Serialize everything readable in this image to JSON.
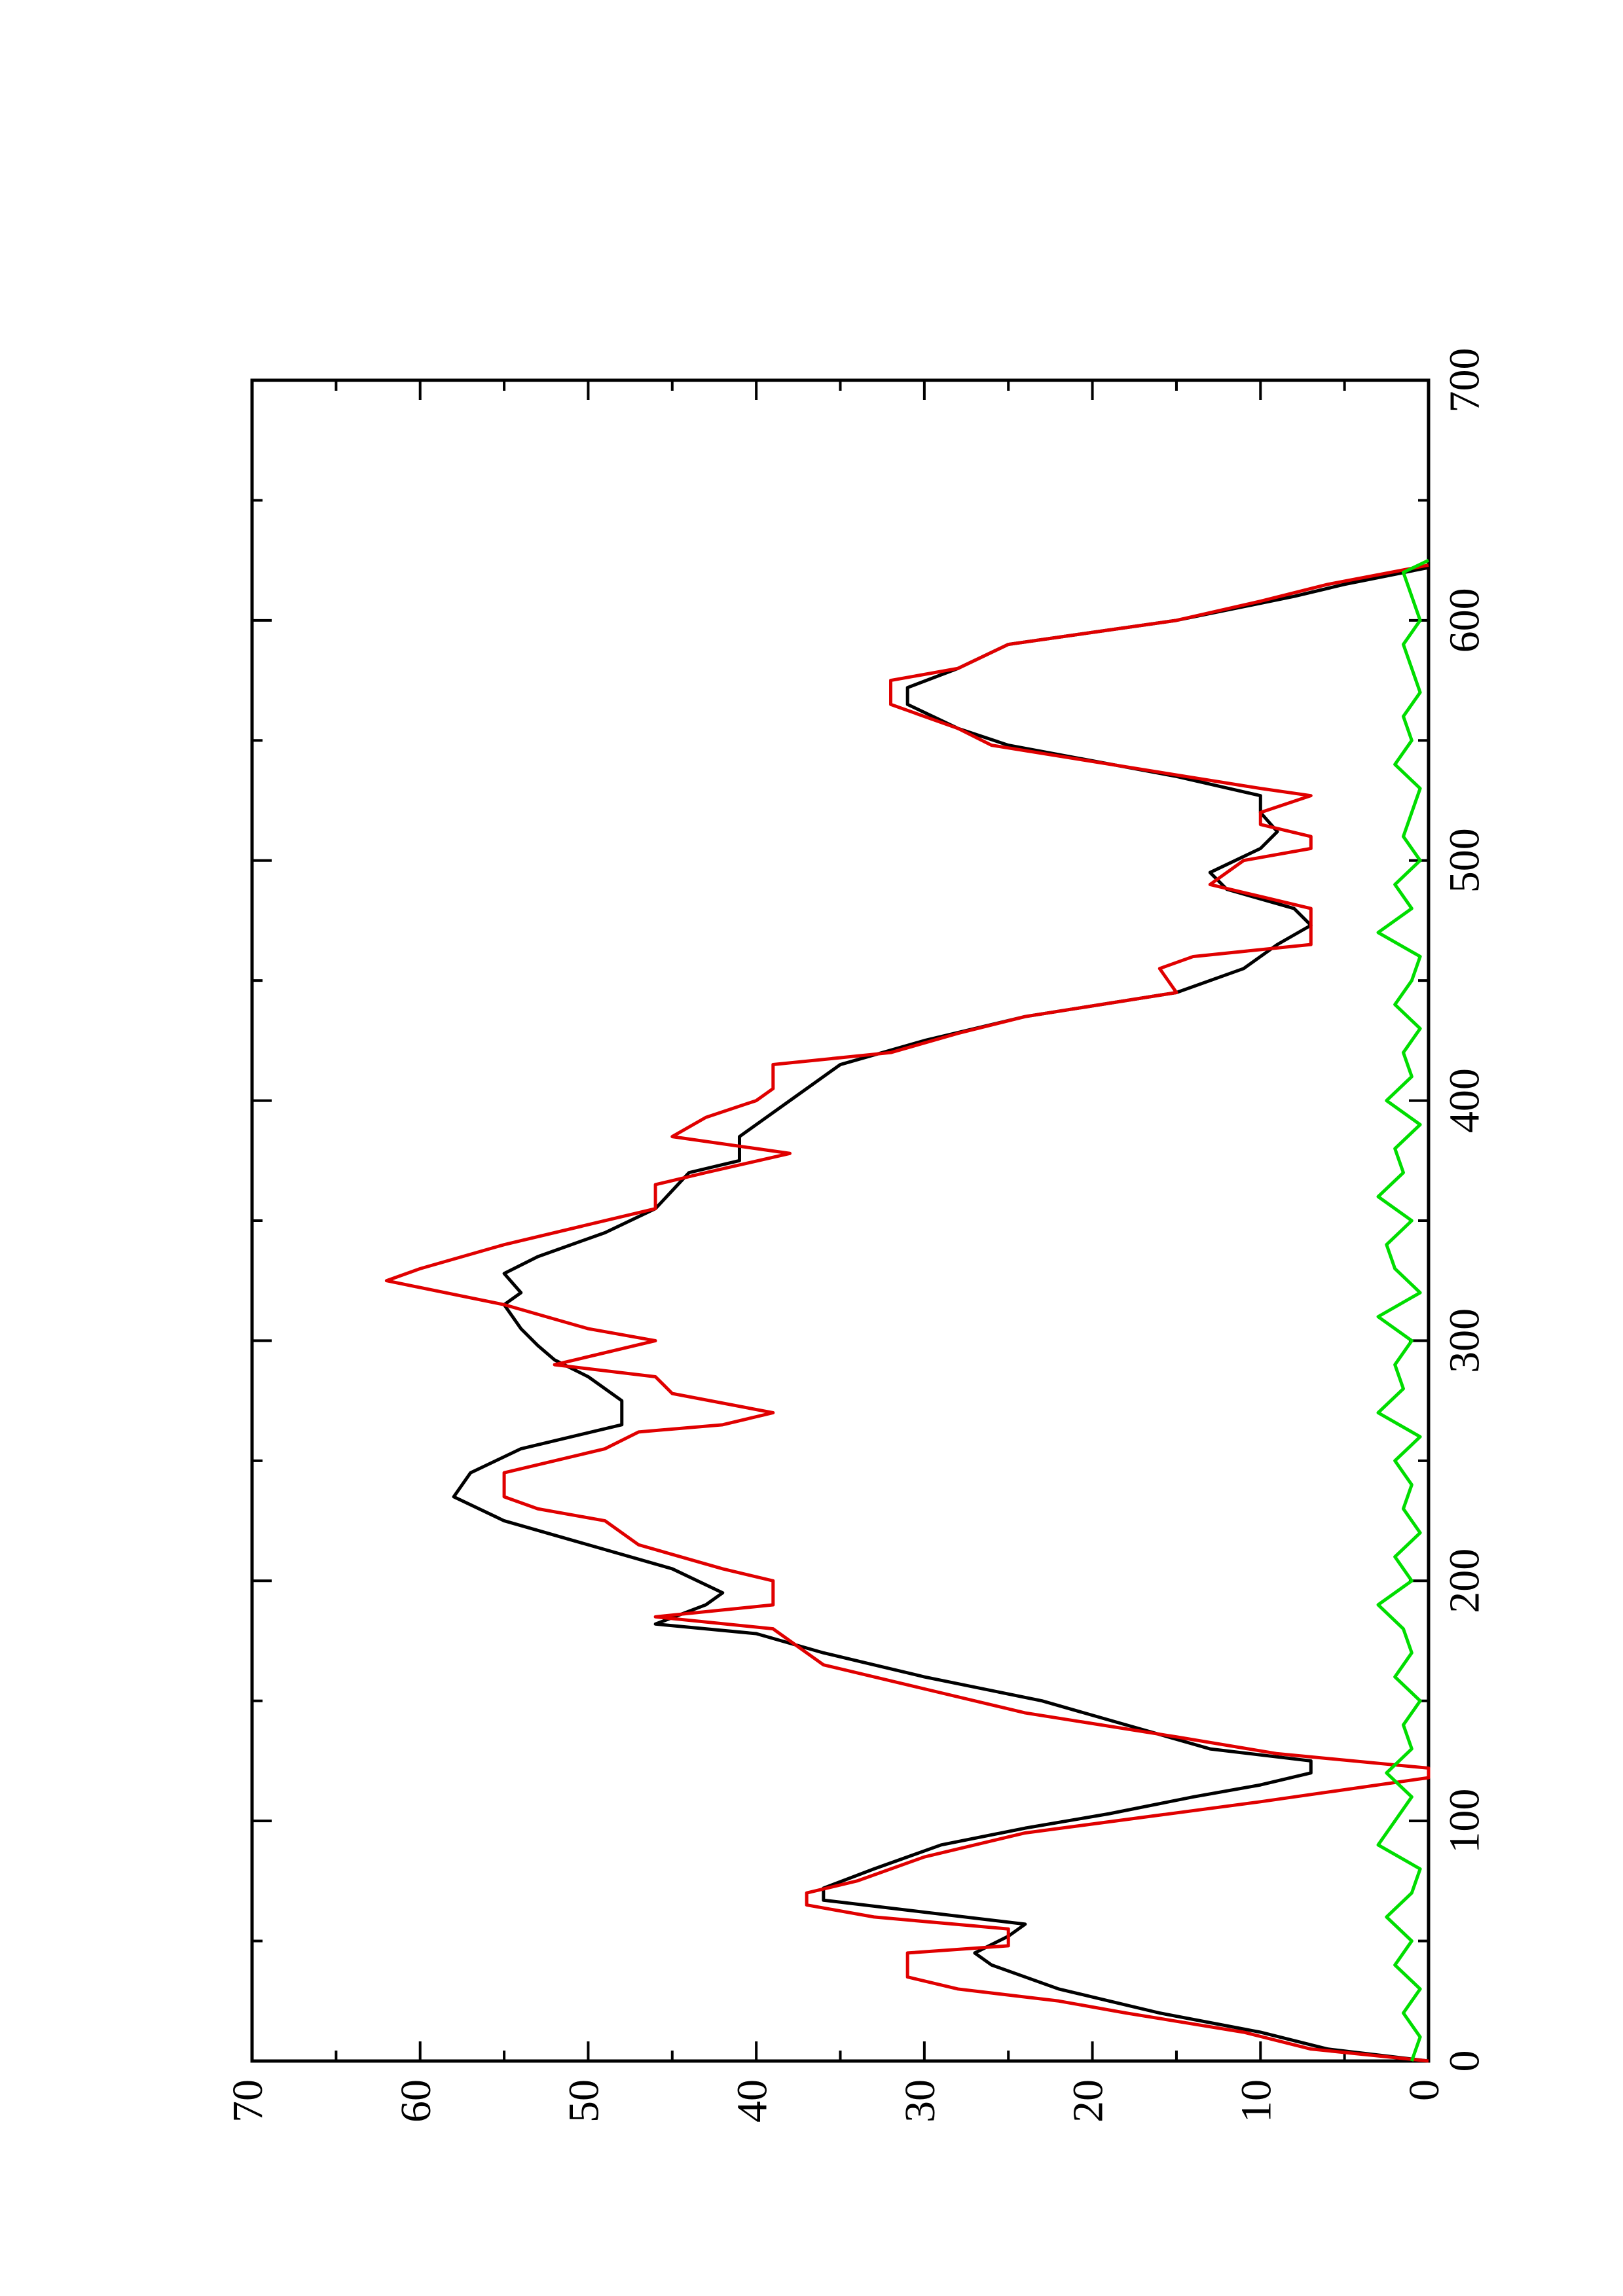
{
  "chart_data": {
    "type": "line",
    "xlim": [
      0,
      700
    ],
    "xticks": [
      0,
      100,
      200,
      300,
      400,
      500,
      600,
      700
    ],
    "xminorticks": [
      50,
      150,
      250,
      350,
      450,
      550,
      650
    ],
    "ylim": [
      0,
      70
    ],
    "yticks": [
      0,
      10,
      20,
      30,
      40,
      50,
      60,
      70
    ],
    "yminorticks": [
      5,
      15,
      25,
      35,
      45,
      55,
      65
    ],
    "rotated": true,
    "series": [
      {
        "color": "#000000",
        "x": [
          0,
          5,
          12,
          20,
          25,
          30,
          40,
          45,
          52,
          57,
          62,
          67,
          72,
          80,
          90,
          97,
          103,
          110,
          115,
          120,
          125,
          130,
          140,
          150,
          160,
          170,
          178,
          182,
          190,
          195,
          205,
          215,
          225,
          235,
          245,
          255,
          265,
          275,
          285,
          292,
          298,
          305,
          315,
          320,
          328,
          335,
          345,
          355,
          370,
          375,
          385,
          390,
          400,
          415,
          425,
          435,
          445,
          455,
          465,
          473,
          480,
          488,
          495,
          505,
          512,
          520,
          527,
          535,
          548,
          555,
          565,
          572,
          580,
          590,
          600,
          610,
          615,
          622
        ],
        "values": [
          0,
          6,
          10,
          16,
          19,
          22,
          26,
          27,
          25,
          24,
          30,
          36,
          36,
          33,
          29,
          24,
          19,
          14,
          10,
          7,
          7,
          13,
          18,
          23,
          30,
          36,
          40,
          46,
          43,
          42,
          45,
          50,
          55,
          58,
          57,
          54,
          48,
          48,
          50,
          52,
          53,
          54,
          55,
          54,
          55,
          53,
          49,
          46,
          44,
          41,
          41,
          40,
          38,
          35,
          30,
          24,
          15,
          11,
          9,
          7,
          8,
          12,
          13,
          10,
          9,
          10,
          10,
          15,
          25,
          28,
          31,
          31,
          28,
          25,
          15,
          8,
          5,
          0
        ]
      },
      {
        "color": "#e00000",
        "x": [
          0,
          5,
          12,
          20,
          25,
          30,
          35,
          45,
          48,
          55,
          60,
          65,
          70,
          75,
          85,
          95,
          108,
          118,
          122,
          128,
          135,
          145,
          155,
          165,
          180,
          185,
          190,
          200,
          205,
          215,
          225,
          230,
          235,
          245,
          255,
          262,
          265,
          270,
          278,
          285,
          290,
          300,
          305,
          315,
          325,
          330,
          340,
          355,
          365,
          370,
          378,
          385,
          393,
          400,
          405,
          415,
          420,
          428,
          435,
          445,
          455,
          460,
          465,
          480,
          485,
          490,
          500,
          505,
          510,
          515,
          520,
          527,
          530,
          548,
          555,
          565,
          575,
          580,
          590,
          600,
          608,
          615,
          623
        ],
        "values": [
          0,
          7,
          11,
          18,
          22,
          28,
          31,
          31,
          25,
          25,
          33,
          37,
          37,
          34,
          30,
          24,
          10,
          0,
          0,
          9,
          15,
          24,
          30,
          36,
          39,
          46,
          39,
          39,
          42,
          47,
          49,
          53,
          55,
          55,
          49,
          47,
          42,
          39,
          45,
          46,
          52,
          46,
          50,
          55,
          62,
          60,
          55,
          46,
          46,
          43,
          38,
          45,
          43,
          40,
          39,
          39,
          32,
          28,
          24,
          15,
          16,
          14,
          7,
          7,
          10,
          13,
          11,
          7,
          7,
          10,
          10,
          7,
          10,
          26,
          28,
          32,
          32,
          28,
          25,
          15,
          10,
          6,
          0
        ]
      },
      {
        "color": "#00dd00",
        "x": [
          0,
          10,
          20,
          30,
          40,
          50,
          60,
          70,
          80,
          90,
          100,
          110,
          120,
          130,
          140,
          150,
          160,
          170,
          180,
          190,
          200,
          210,
          220,
          230,
          240,
          250,
          260,
          270,
          280,
          290,
          300,
          310,
          320,
          330,
          340,
          350,
          360,
          370,
          380,
          390,
          400,
          410,
          420,
          430,
          440,
          450,
          460,
          470,
          480,
          490,
          500,
          510,
          520,
          530,
          540,
          550,
          560,
          570,
          580,
          590,
          600,
          610,
          620,
          625
        ],
        "values": [
          1,
          0.5,
          1.5,
          0.5,
          2,
          1,
          2.5,
          1,
          0.5,
          3,
          2,
          1,
          2.5,
          1,
          1.5,
          0.5,
          2,
          1,
          1.5,
          3,
          1,
          2,
          0.5,
          1.5,
          1,
          2,
          0.5,
          3,
          1.5,
          2,
          1,
          3,
          0.5,
          2,
          2.5,
          1,
          3,
          1.5,
          2,
          0.5,
          2.5,
          1,
          1.5,
          0.5,
          2,
          1,
          0.5,
          3,
          1,
          2,
          0.5,
          1.5,
          1,
          0.5,
          2,
          1,
          1.5,
          0.5,
          1,
          1.5,
          0.5,
          1,
          1.5,
          0
        ]
      }
    ]
  }
}
